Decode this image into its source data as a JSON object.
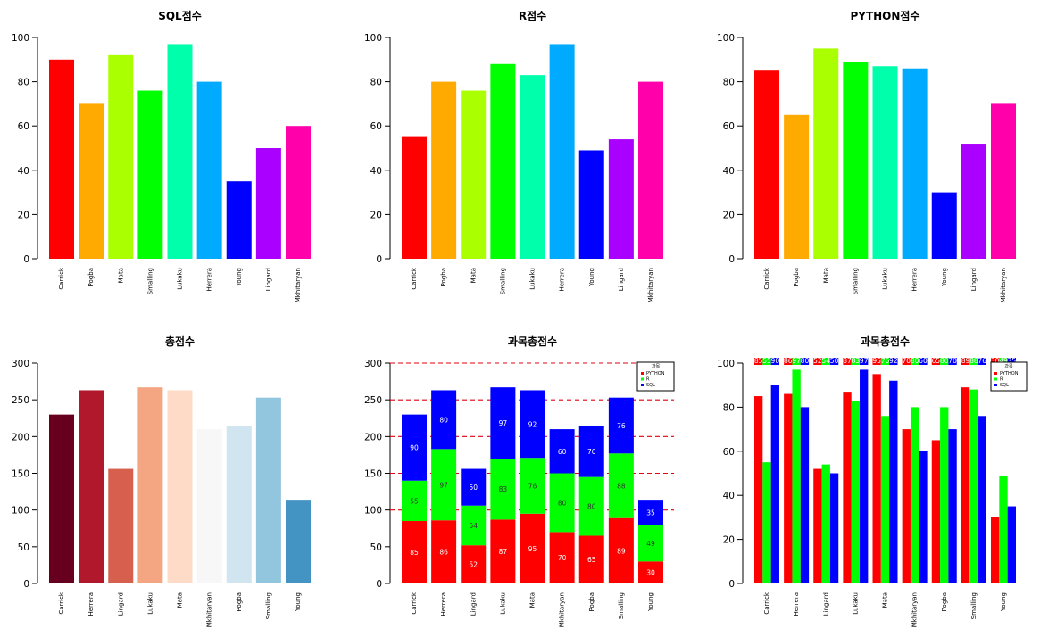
{
  "chart_data": [
    {
      "type": "bar",
      "title": "SQL점수",
      "categories": [
        "Carrick",
        "Pogba",
        "Mata",
        "Smalling",
        "Lukaku",
        "Herrera",
        "Young",
        "Lingard",
        "Mkhitaryan"
      ],
      "values": [
        90,
        70,
        92,
        76,
        97,
        80,
        35,
        50,
        60
      ],
      "colors": [
        "#FF0000",
        "#FFAA00",
        "#AAFF00",
        "#00FF00",
        "#00FFAA",
        "#00AAFF",
        "#0000FF",
        "#AA00FF",
        "#FF00AA"
      ],
      "ylim": [
        0,
        100
      ],
      "yticks": [
        0,
        20,
        40,
        60,
        80,
        100
      ]
    },
    {
      "type": "bar",
      "title": "R점수",
      "categories": [
        "Carrick",
        "Pogba",
        "Mata",
        "Smalling",
        "Lukaku",
        "Herrera",
        "Young",
        "Lingard",
        "Mkhitaryan"
      ],
      "values": [
        55,
        80,
        76,
        88,
        83,
        97,
        49,
        54,
        80
      ],
      "colors": [
        "#FF0000",
        "#FFAA00",
        "#AAFF00",
        "#00FF00",
        "#00FFAA",
        "#00AAFF",
        "#0000FF",
        "#AA00FF",
        "#FF00AA"
      ],
      "ylim": [
        0,
        100
      ],
      "yticks": [
        0,
        20,
        40,
        60,
        80,
        100
      ]
    },
    {
      "type": "bar",
      "title": "PYTHON점수",
      "categories": [
        "Carrick",
        "Pogba",
        "Mata",
        "Smalling",
        "Lukaku",
        "Herrera",
        "Young",
        "Lingard",
        "Mkhitaryan"
      ],
      "values": [
        85,
        65,
        95,
        89,
        87,
        86,
        30,
        52,
        70
      ],
      "colors": [
        "#FF0000",
        "#FFAA00",
        "#AAFF00",
        "#00FF00",
        "#00FFAA",
        "#00AAFF",
        "#0000FF",
        "#AA00FF",
        "#FF00AA"
      ],
      "ylim": [
        0,
        100
      ],
      "yticks": [
        0,
        20,
        40,
        60,
        80,
        100
      ]
    },
    {
      "type": "bar",
      "title": "총점수",
      "categories": [
        "Carrick",
        "Herrera",
        "Lingard",
        "Lukaku",
        "Mata",
        "Mkhitaryan",
        "Pogba",
        "Smalling",
        "Young"
      ],
      "values": [
        230,
        263,
        156,
        267,
        263,
        210,
        215,
        253,
        114
      ],
      "colors": [
        "#67001F",
        "#B2182B",
        "#D6604D",
        "#F4A582",
        "#FDDBC7",
        "#F7F7F7",
        "#D1E5F0",
        "#92C5DE",
        "#4393C3"
      ],
      "ylim": [
        0,
        300
      ],
      "yticks": [
        0,
        50,
        100,
        150,
        200,
        250,
        300
      ]
    },
    {
      "type": "bar",
      "mode": "stacked",
      "title": "과목총점수",
      "categories": [
        "Carrick",
        "Herrera",
        "Lingard",
        "Lukaku",
        "Mata",
        "Mkhitaryan",
        "Pogba",
        "Smalling",
        "Young"
      ],
      "series": [
        {
          "name": "PYTHON",
          "color": "#FF0000",
          "values": [
            85,
            86,
            52,
            87,
            95,
            70,
            65,
            89,
            30
          ]
        },
        {
          "name": "R",
          "color": "#00FF00",
          "values": [
            55,
            97,
            54,
            83,
            76,
            80,
            80,
            88,
            49
          ]
        },
        {
          "name": "SQL",
          "color": "#0000FF",
          "values": [
            90,
            80,
            50,
            97,
            92,
            60,
            70,
            76,
            35
          ]
        }
      ],
      "legend_title": "과목",
      "legend_position": "top-right",
      "hlines": [
        100,
        150,
        200,
        250,
        300
      ],
      "ylim": [
        0,
        300
      ],
      "yticks": [
        0,
        50,
        100,
        150,
        200,
        250,
        300
      ]
    },
    {
      "type": "bar",
      "mode": "grouped",
      "title": "과목총점수",
      "categories": [
        "Carrick",
        "Herrera",
        "Lingard",
        "Lukaku",
        "Mata",
        "Mkhitaryan",
        "Pogba",
        "Smalling",
        "Young"
      ],
      "series": [
        {
          "name": "PYTHON",
          "color": "#FF0000",
          "values": [
            85,
            86,
            52,
            87,
            95,
            70,
            65,
            89,
            30
          ]
        },
        {
          "name": "R",
          "color": "#00FF00",
          "values": [
            55,
            97,
            54,
            83,
            76,
            80,
            80,
            88,
            49
          ]
        },
        {
          "name": "SQL",
          "color": "#0000FF",
          "values": [
            90,
            80,
            50,
            97,
            92,
            60,
            70,
            76,
            35
          ]
        }
      ],
      "legend_title": "과목",
      "legend_position": "top-right",
      "ylim": [
        0,
        100
      ],
      "yticks": [
        0,
        20,
        40,
        60,
        80,
        100
      ]
    }
  ]
}
